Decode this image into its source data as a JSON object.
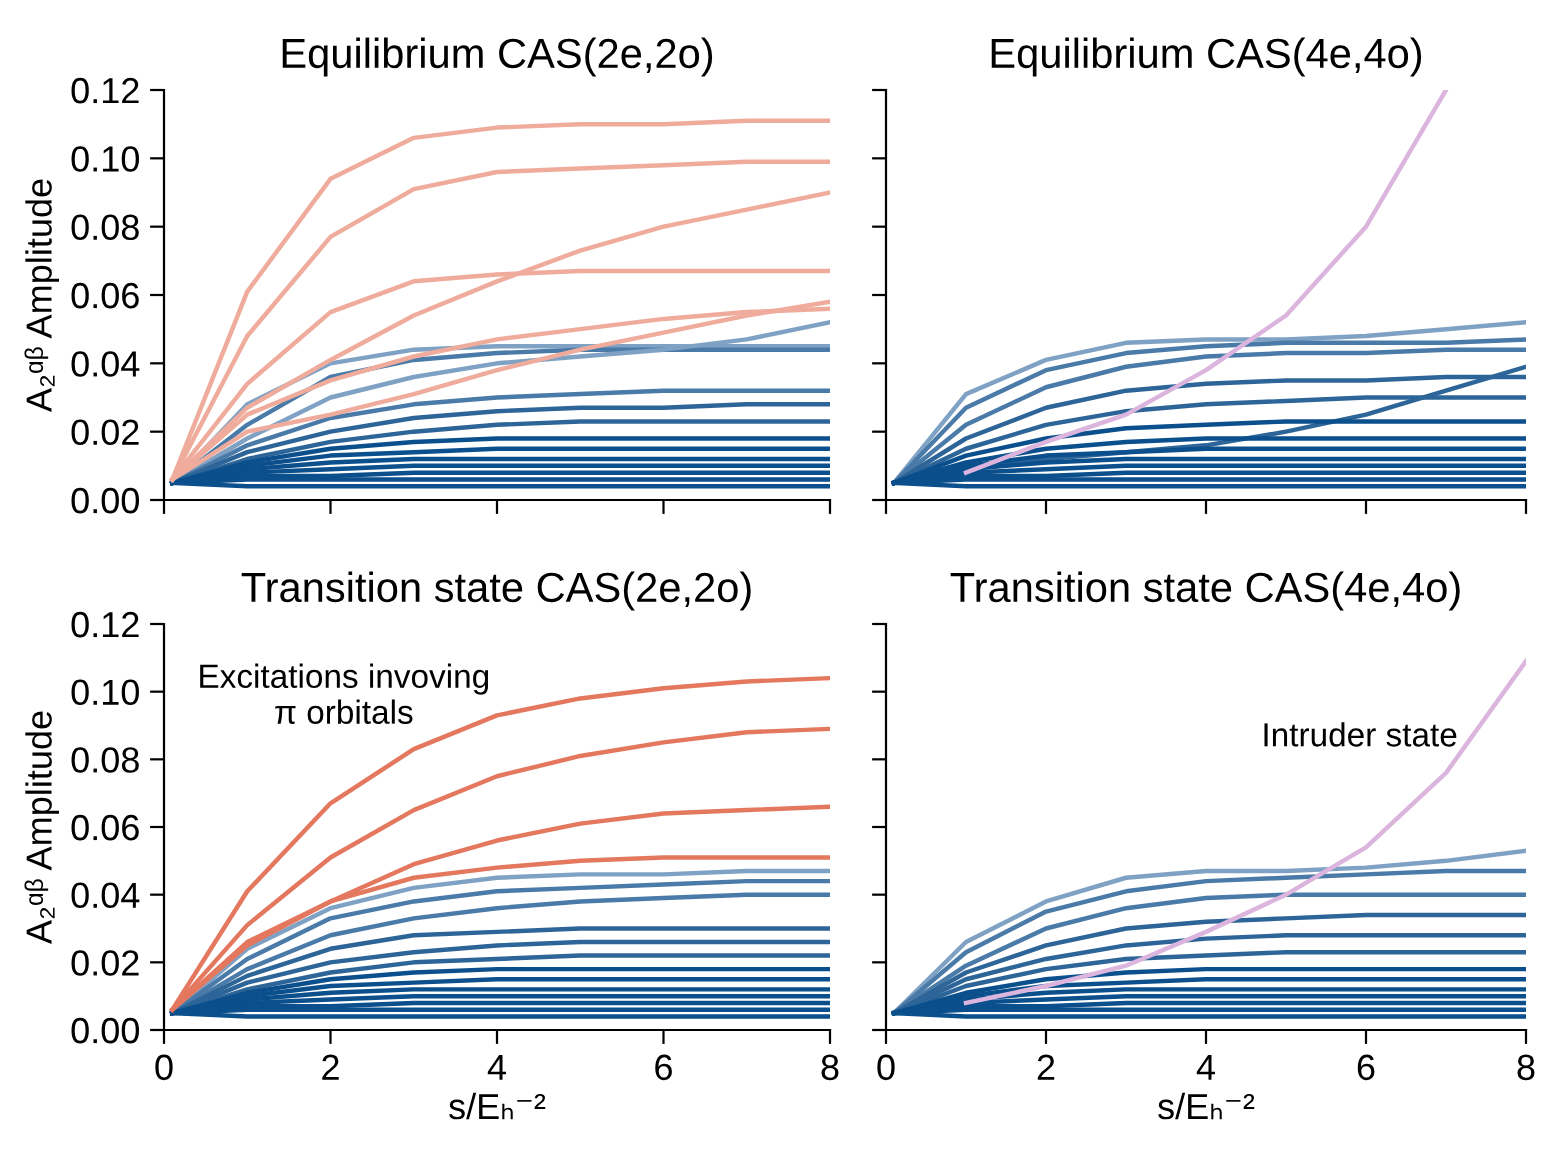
{
  "chart_data": [
    {
      "type": "line",
      "title": "Equilibrium CAS(2e,2o)",
      "ylabel": "A₂ᵅᵝ Amplitude",
      "x": [
        0.1,
        1,
        2,
        3,
        4,
        5,
        6,
        7,
        8
      ],
      "xlim": [
        0,
        8
      ],
      "xticks": [
        0,
        2,
        4,
        6,
        8
      ],
      "ylim": [
        0,
        0.12
      ],
      "yticks": [
        {
          "value": 0,
          "label": "0.00"
        },
        {
          "value": 0.02,
          "label": "0.02"
        },
        {
          "value": 0.04,
          "label": "0.04"
        },
        {
          "value": 0.06,
          "label": "0.06"
        },
        {
          "value": 0.08,
          "label": "0.08"
        },
        {
          "value": 0.1,
          "label": "0.10"
        },
        {
          "value": 0.12,
          "label": "0.12"
        }
      ],
      "tick_labels": "y",
      "grid": false,
      "legend": false,
      "series": [
        {
          "color": "#7fa2c4",
          "values": [
            0.005,
            0.028,
            0.04,
            0.044,
            0.045,
            0.045,
            0.045,
            0.045,
            0.045
          ]
        },
        {
          "color": "#4a7aa8",
          "values": [
            0.005,
            0.022,
            0.036,
            0.041,
            0.043,
            0.044,
            0.044,
            0.044,
            0.044
          ]
        },
        {
          "color": "#7fa2c4",
          "values": [
            0.005,
            0.018,
            0.03,
            0.036,
            0.04,
            0.042,
            0.044,
            0.047,
            0.052
          ]
        },
        {
          "color": "#4a7aa8",
          "values": [
            0.005,
            0.016,
            0.024,
            0.028,
            0.03,
            0.031,
            0.032,
            0.032,
            0.032
          ]
        },
        {
          "color": "#2d6599",
          "values": [
            0.005,
            0.014,
            0.02,
            0.024,
            0.026,
            0.027,
            0.027,
            0.028,
            0.028
          ]
        },
        {
          "color": "#2d6599",
          "values": [
            0.005,
            0.012,
            0.017,
            0.02,
            0.022,
            0.023,
            0.023,
            0.023,
            0.023
          ]
        },
        {
          "color": "#0b4f8c",
          "values": [
            0.005,
            0.011,
            0.015,
            0.017,
            0.018,
            0.018,
            0.018,
            0.018,
            0.018
          ]
        },
        {
          "color": "#0b4f8c",
          "values": [
            0.005,
            0.01,
            0.013,
            0.014,
            0.015,
            0.015,
            0.015,
            0.015,
            0.015
          ]
        },
        {
          "color": "#0b4f8c",
          "values": [
            0.005,
            0.009,
            0.011,
            0.012,
            0.012,
            0.012,
            0.012,
            0.012,
            0.012
          ]
        },
        {
          "color": "#0b4f8c",
          "values": [
            0.005,
            0.008,
            0.009,
            0.01,
            0.01,
            0.01,
            0.01,
            0.01,
            0.01
          ]
        },
        {
          "color": "#0b4f8c",
          "values": [
            0.005,
            0.007,
            0.007,
            0.008,
            0.008,
            0.008,
            0.008,
            0.008,
            0.008
          ]
        },
        {
          "color": "#0b4f8c",
          "values": [
            0.005,
            0.006,
            0.006,
            0.006,
            0.006,
            0.006,
            0.006,
            0.006,
            0.006
          ]
        },
        {
          "color": "#0b4f8c",
          "values": [
            0.005,
            0.004,
            0.004,
            0.004,
            0.004,
            0.004,
            0.004,
            0.004,
            0.004
          ]
        },
        {
          "color": "#efac9c",
          "values": [
            0.006,
            0.061,
            0.094,
            0.106,
            0.109,
            0.11,
            0.11,
            0.111,
            0.111
          ]
        },
        {
          "color": "#efac9c",
          "values": [
            0.006,
            0.048,
            0.077,
            0.091,
            0.096,
            0.097,
            0.098,
            0.099,
            0.099
          ]
        },
        {
          "color": "#efac9c",
          "values": [
            0.006,
            0.034,
            0.055,
            0.064,
            0.066,
            0.067,
            0.067,
            0.067,
            0.067
          ]
        },
        {
          "color": "#efac9c",
          "values": [
            0.006,
            0.027,
            0.041,
            0.054,
            0.064,
            0.073,
            0.08,
            0.085,
            0.09
          ]
        },
        {
          "color": "#efac9c",
          "values": [
            0.006,
            0.025,
            0.035,
            0.042,
            0.047,
            0.05,
            0.053,
            0.055,
            0.056
          ]
        },
        {
          "color": "#efac9c",
          "values": [
            0.006,
            0.02,
            0.025,
            0.031,
            0.038,
            0.044,
            0.049,
            0.054,
            0.058
          ]
        }
      ]
    },
    {
      "type": "line",
      "title": "Equilibrium CAS(4e,4o)",
      "x": [
        0.1,
        1,
        2,
        3,
        4,
        5,
        6,
        7,
        8
      ],
      "xlim": [
        0,
        8
      ],
      "xticks": [
        0,
        2,
        4,
        6,
        8
      ],
      "ylim": [
        0,
        0.12
      ],
      "yticks": [
        {
          "value": 0,
          "label": null
        },
        {
          "value": 0.02,
          "label": null
        },
        {
          "value": 0.04,
          "label": null
        },
        {
          "value": 0.06,
          "label": null
        },
        {
          "value": 0.08,
          "label": null
        },
        {
          "value": 0.1,
          "label": null
        },
        {
          "value": 0.12,
          "label": null
        }
      ],
      "tick_labels": false,
      "grid": false,
      "legend": false,
      "series": [
        {
          "color": "#7fa2c4",
          "values": [
            0.005,
            0.031,
            0.041,
            0.046,
            0.047,
            0.047,
            0.048,
            0.05,
            0.052
          ]
        },
        {
          "color": "#4a7aa8",
          "values": [
            0.005,
            0.027,
            0.038,
            0.043,
            0.045,
            0.046,
            0.046,
            0.046,
            0.047
          ]
        },
        {
          "color": "#4a7aa8",
          "values": [
            0.005,
            0.022,
            0.033,
            0.039,
            0.042,
            0.043,
            0.043,
            0.044,
            0.044
          ]
        },
        {
          "color": "#2d6599",
          "values": [
            0.005,
            0.018,
            0.027,
            0.032,
            0.034,
            0.035,
            0.035,
            0.036,
            0.036
          ]
        },
        {
          "color": "#2d6599",
          "values": [
            0.005,
            0.015,
            0.022,
            0.026,
            0.028,
            0.029,
            0.03,
            0.03,
            0.03
          ]
        },
        {
          "color": "#2d6599",
          "values": [
            0.005,
            0.01,
            0.012,
            0.014,
            0.016,
            0.02,
            0.025,
            0.032,
            0.039
          ]
        },
        {
          "color": "#0b4f8c",
          "values": [
            0.005,
            0.013,
            0.018,
            0.021,
            0.022,
            0.023,
            0.023,
            0.023,
            0.023
          ]
        },
        {
          "color": "#0b4f8c",
          "values": [
            0.005,
            0.011,
            0.015,
            0.017,
            0.018,
            0.018,
            0.018,
            0.018,
            0.018
          ]
        },
        {
          "color": "#0b4f8c",
          "values": [
            0.005,
            0.01,
            0.013,
            0.014,
            0.015,
            0.015,
            0.015,
            0.015,
            0.015
          ]
        },
        {
          "color": "#0b4f8c",
          "values": [
            0.005,
            0.009,
            0.011,
            0.012,
            0.012,
            0.012,
            0.012,
            0.012,
            0.012
          ]
        },
        {
          "color": "#0b4f8c",
          "values": [
            0.005,
            0.008,
            0.009,
            0.01,
            0.01,
            0.01,
            0.01,
            0.01,
            0.01
          ]
        },
        {
          "color": "#0b4f8c",
          "values": [
            0.005,
            0.007,
            0.007,
            0.008,
            0.008,
            0.008,
            0.008,
            0.008,
            0.008
          ]
        },
        {
          "color": "#0b4f8c",
          "values": [
            0.005,
            0.006,
            0.006,
            0.006,
            0.006,
            0.006,
            0.006,
            0.006,
            0.006
          ]
        },
        {
          "color": "#0b4f8c",
          "values": [
            0.005,
            0.004,
            0.004,
            0.004,
            0.004,
            0.004,
            0.004,
            0.004,
            0.004
          ]
        },
        {
          "color": "#dbb5dd",
          "values": [
            null,
            0.008,
            0.017,
            0.025,
            0.038,
            0.054,
            0.08,
            0.12,
            null
          ]
        }
      ]
    },
    {
      "type": "line",
      "title": "Transition state CAS(2e,2o)",
      "ylabel": "A₂ᵅᵝ Amplitude",
      "xlabel": "s/Eₕ⁻²",
      "x": [
        0.1,
        1,
        2,
        3,
        4,
        5,
        6,
        7,
        8
      ],
      "xlim": [
        0,
        8
      ],
      "xticks": [
        0,
        2,
        4,
        6,
        8
      ],
      "ylim": [
        0,
        0.12
      ],
      "yticks": [
        {
          "value": 0,
          "label": "0.00"
        },
        {
          "value": 0.02,
          "label": "0.02"
        },
        {
          "value": 0.04,
          "label": "0.04"
        },
        {
          "value": 0.06,
          "label": "0.06"
        },
        {
          "value": 0.08,
          "label": "0.08"
        },
        {
          "value": 0.1,
          "label": "0.10"
        },
        {
          "value": 0.12,
          "label": "0.12"
        }
      ],
      "grid": false,
      "legend": false,
      "annotations": [
        "Excitations invoving\nπ orbitals"
      ],
      "series": [
        {
          "color": "#7fa2c4",
          "values": [
            0.005,
            0.024,
            0.036,
            0.042,
            0.045,
            0.046,
            0.046,
            0.047,
            0.047
          ]
        },
        {
          "color": "#4a7aa8",
          "values": [
            0.005,
            0.021,
            0.033,
            0.038,
            0.041,
            0.042,
            0.043,
            0.044,
            0.044
          ]
        },
        {
          "color": "#4a7aa8",
          "values": [
            0.005,
            0.018,
            0.028,
            0.033,
            0.036,
            0.038,
            0.039,
            0.04,
            0.04
          ]
        },
        {
          "color": "#2d6599",
          "values": [
            0.005,
            0.016,
            0.024,
            0.028,
            0.029,
            0.03,
            0.03,
            0.03,
            0.03
          ]
        },
        {
          "color": "#2d6599",
          "values": [
            0.005,
            0.014,
            0.02,
            0.023,
            0.025,
            0.026,
            0.026,
            0.026,
            0.026
          ]
        },
        {
          "color": "#2d6599",
          "values": [
            0.005,
            0.012,
            0.017,
            0.02,
            0.021,
            0.022,
            0.022,
            0.022,
            0.022
          ]
        },
        {
          "color": "#0b4f8c",
          "values": [
            0.005,
            0.011,
            0.015,
            0.017,
            0.018,
            0.018,
            0.018,
            0.018,
            0.018
          ]
        },
        {
          "color": "#0b4f8c",
          "values": [
            0.005,
            0.01,
            0.013,
            0.014,
            0.015,
            0.015,
            0.015,
            0.015,
            0.015
          ]
        },
        {
          "color": "#0b4f8c",
          "values": [
            0.005,
            0.009,
            0.011,
            0.012,
            0.012,
            0.012,
            0.012,
            0.012,
            0.012
          ]
        },
        {
          "color": "#0b4f8c",
          "values": [
            0.005,
            0.008,
            0.009,
            0.01,
            0.01,
            0.01,
            0.01,
            0.01,
            0.01
          ]
        },
        {
          "color": "#0b4f8c",
          "values": [
            0.005,
            0.007,
            0.007,
            0.008,
            0.008,
            0.008,
            0.008,
            0.008,
            0.008
          ]
        },
        {
          "color": "#0b4f8c",
          "values": [
            0.005,
            0.006,
            0.006,
            0.006,
            0.006,
            0.006,
            0.006,
            0.006,
            0.006
          ]
        },
        {
          "color": "#0b4f8c",
          "values": [
            0.005,
            0.004,
            0.004,
            0.004,
            0.004,
            0.004,
            0.004,
            0.004,
            0.004
          ]
        },
        {
          "color": "#e4785f",
          "values": [
            0.006,
            0.041,
            0.067,
            0.083,
            0.093,
            0.098,
            0.101,
            0.103,
            0.104
          ]
        },
        {
          "color": "#e4785f",
          "values": [
            0.006,
            0.031,
            0.051,
            0.065,
            0.075,
            0.081,
            0.085,
            0.088,
            0.089
          ]
        },
        {
          "color": "#e4785f",
          "values": [
            0.006,
            0.026,
            0.038,
            0.049,
            0.056,
            0.061,
            0.064,
            0.065,
            0.066
          ]
        },
        {
          "color": "#e4785f",
          "values": [
            0.006,
            0.025,
            0.038,
            0.045,
            0.048,
            0.05,
            0.051,
            0.051,
            0.051
          ]
        }
      ]
    },
    {
      "type": "line",
      "title": "Transition state CAS(4e,4o)",
      "xlabel": "s/Eₕ⁻²",
      "x": [
        0.1,
        1,
        2,
        3,
        4,
        5,
        6,
        7,
        8
      ],
      "xlim": [
        0,
        8
      ],
      "xticks": [
        0,
        2,
        4,
        6,
        8
      ],
      "ylim": [
        0,
        0.12
      ],
      "yticks": [
        {
          "value": 0,
          "label": null
        },
        {
          "value": 0.02,
          "label": null
        },
        {
          "value": 0.04,
          "label": null
        },
        {
          "value": 0.06,
          "label": null
        },
        {
          "value": 0.08,
          "label": null
        },
        {
          "value": 0.1,
          "label": null
        },
        {
          "value": 0.12,
          "label": null
        }
      ],
      "tick_labels": "x",
      "grid": false,
      "legend": false,
      "annotations": [
        "Intruder state"
      ],
      "series": [
        {
          "color": "#7fa2c4",
          "values": [
            0.005,
            0.026,
            0.038,
            0.045,
            0.047,
            0.047,
            0.048,
            0.05,
            0.053
          ]
        },
        {
          "color": "#4a7aa8",
          "values": [
            0.005,
            0.023,
            0.035,
            0.041,
            0.044,
            0.045,
            0.046,
            0.047,
            0.047
          ]
        },
        {
          "color": "#4a7aa8",
          "values": [
            0.005,
            0.019,
            0.03,
            0.036,
            0.039,
            0.04,
            0.04,
            0.04,
            0.04
          ]
        },
        {
          "color": "#2d6599",
          "values": [
            0.005,
            0.017,
            0.025,
            0.03,
            0.032,
            0.033,
            0.034,
            0.034,
            0.034
          ]
        },
        {
          "color": "#2d6599",
          "values": [
            0.005,
            0.015,
            0.021,
            0.025,
            0.027,
            0.028,
            0.028,
            0.028,
            0.028
          ]
        },
        {
          "color": "#2d6599",
          "values": [
            0.005,
            0.013,
            0.018,
            0.021,
            0.022,
            0.023,
            0.023,
            0.023,
            0.023
          ]
        },
        {
          "color": "#0b4f8c",
          "values": [
            0.005,
            0.011,
            0.015,
            0.017,
            0.018,
            0.018,
            0.018,
            0.018,
            0.018
          ]
        },
        {
          "color": "#0b4f8c",
          "values": [
            0.005,
            0.01,
            0.013,
            0.014,
            0.015,
            0.015,
            0.015,
            0.015,
            0.015
          ]
        },
        {
          "color": "#0b4f8c",
          "values": [
            0.005,
            0.009,
            0.011,
            0.012,
            0.012,
            0.012,
            0.012,
            0.012,
            0.012
          ]
        },
        {
          "color": "#0b4f8c",
          "values": [
            0.005,
            0.008,
            0.009,
            0.01,
            0.01,
            0.01,
            0.01,
            0.01,
            0.01
          ]
        },
        {
          "color": "#0b4f8c",
          "values": [
            0.005,
            0.007,
            0.007,
            0.008,
            0.008,
            0.008,
            0.008,
            0.008,
            0.008
          ]
        },
        {
          "color": "#0b4f8c",
          "values": [
            0.005,
            0.006,
            0.006,
            0.006,
            0.006,
            0.006,
            0.006,
            0.006,
            0.006
          ]
        },
        {
          "color": "#0b4f8c",
          "values": [
            0.005,
            0.004,
            0.004,
            0.004,
            0.004,
            0.004,
            0.004,
            0.004,
            0.004
          ]
        },
        {
          "color": "#dbb5dd",
          "values": [
            null,
            0.008,
            0.013,
            0.019,
            0.029,
            0.04,
            0.054,
            0.076,
            0.109
          ]
        }
      ]
    }
  ]
}
